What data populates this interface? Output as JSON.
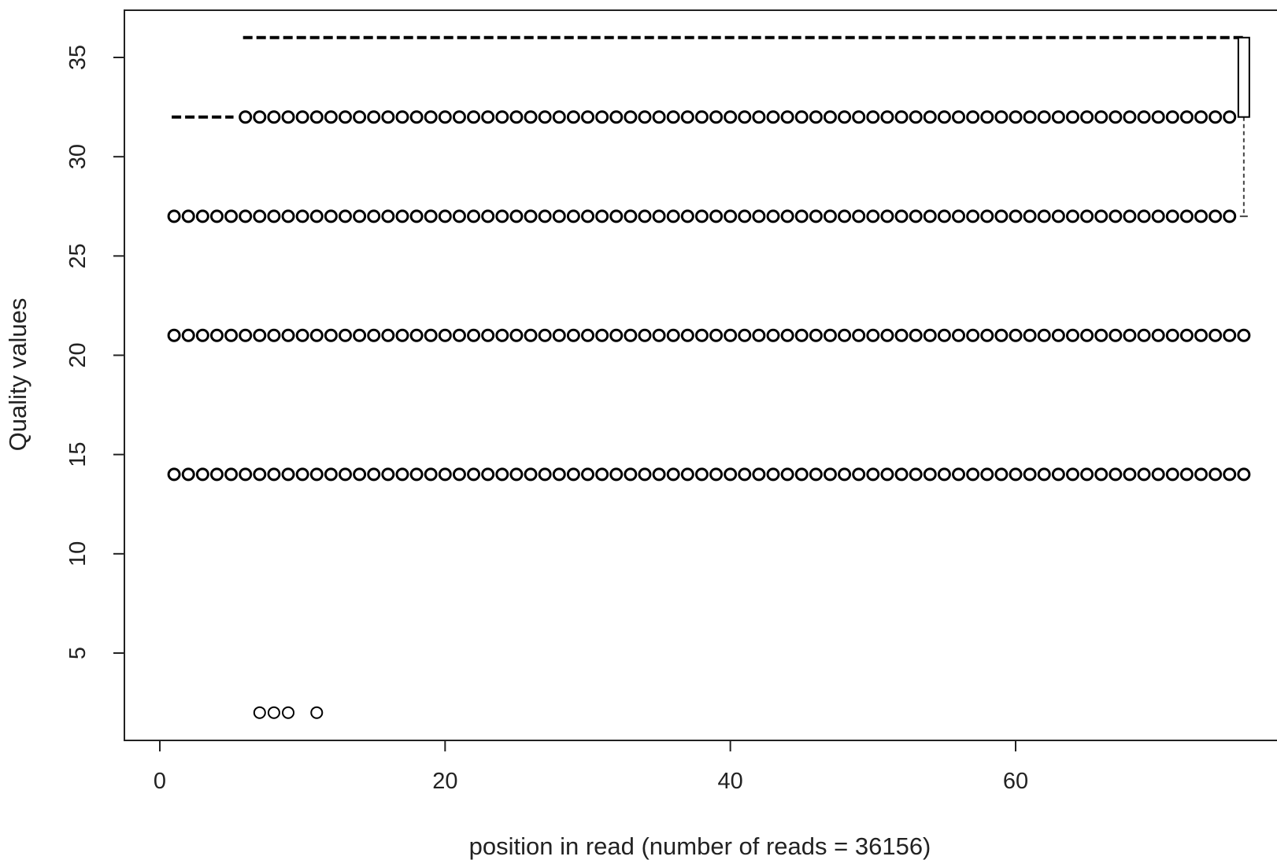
{
  "chart_data": {
    "type": "boxplot",
    "title": "",
    "xlabel": "position in read (number of reads = 36156)",
    "ylabel": "Quality values",
    "xlim": [
      -1,
      78
    ],
    "ylim": [
      0.2,
      37.2
    ],
    "xticks": [
      0,
      20,
      40,
      60
    ],
    "yticks": [
      5,
      10,
      15,
      20,
      25,
      30,
      35
    ],
    "x_positions": {
      "start": 1,
      "end": 76
    },
    "upper_whisker": {
      "x_ranges": [
        [
          1,
          5,
          32
        ],
        [
          6,
          76,
          36
        ]
      ]
    },
    "box": {
      "x": 76,
      "lower": 32,
      "upper": 36
    },
    "lower_whisker": {
      "x": 76,
      "from": 32,
      "to": 27
    },
    "outlier_levels": [
      {
        "y": 32,
        "x_from": 6,
        "x_to": 75
      },
      {
        "y": 27,
        "x_from": 1,
        "x_to": 75
      },
      {
        "y": 21,
        "x_from": 1,
        "x_to": 76
      },
      {
        "y": 14,
        "x_from": 1,
        "x_to": 76
      }
    ],
    "extra_outliers": [
      {
        "x": 7,
        "y": 2
      },
      {
        "x": 8,
        "y": 2
      },
      {
        "x": 9,
        "y": 2
      },
      {
        "x": 11,
        "y": 2
      }
    ],
    "colors": {
      "ink": "#000000",
      "axis": "#222222",
      "whisker": "#444444"
    }
  }
}
